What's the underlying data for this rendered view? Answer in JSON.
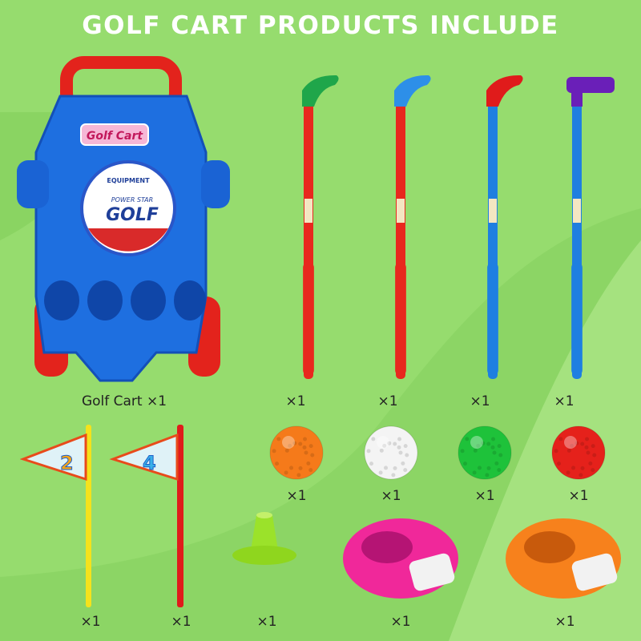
{
  "title": "GOLF CART PRODUCTS INCLUDE",
  "cart": {
    "label": "Golf Cart ×1",
    "logo_sticker": "Golf Cart",
    "badge_top": "EQUIPMENT",
    "badge_middle": "POWER STAR",
    "badge_main": "GOLF"
  },
  "clubs": [
    {
      "color": "#1fa64a",
      "shaft": "#e8281e",
      "qty": "×1"
    },
    {
      "color": "#2d8fe8",
      "shaft": "#e8281e",
      "qty": "×1"
    },
    {
      "color": "#e01b1b",
      "shaft": "#1f7fe0",
      "qty": "×1"
    },
    {
      "color": "#6a1fb8",
      "shaft": "#1f7fe0",
      "qty": "×1"
    }
  ],
  "balls": [
    {
      "color": "#f57a1a",
      "qty": "×1"
    },
    {
      "color": "#f4f4f4",
      "qty": "×1"
    },
    {
      "color": "#1ec23a",
      "qty": "×1"
    },
    {
      "color": "#e5211b",
      "qty": "×1"
    }
  ],
  "flags": [
    {
      "number": "2",
      "pole": "#f5e21c",
      "qty": "×1"
    },
    {
      "number": "4",
      "pole": "#e01b1b",
      "qty": "×1"
    }
  ],
  "tee": {
    "color": "#9be22a",
    "qty": "×1"
  },
  "cups": [
    {
      "color": "#f0289a",
      "qty": "×1"
    },
    {
      "color": "#f7811c",
      "qty": "×1"
    }
  ]
}
